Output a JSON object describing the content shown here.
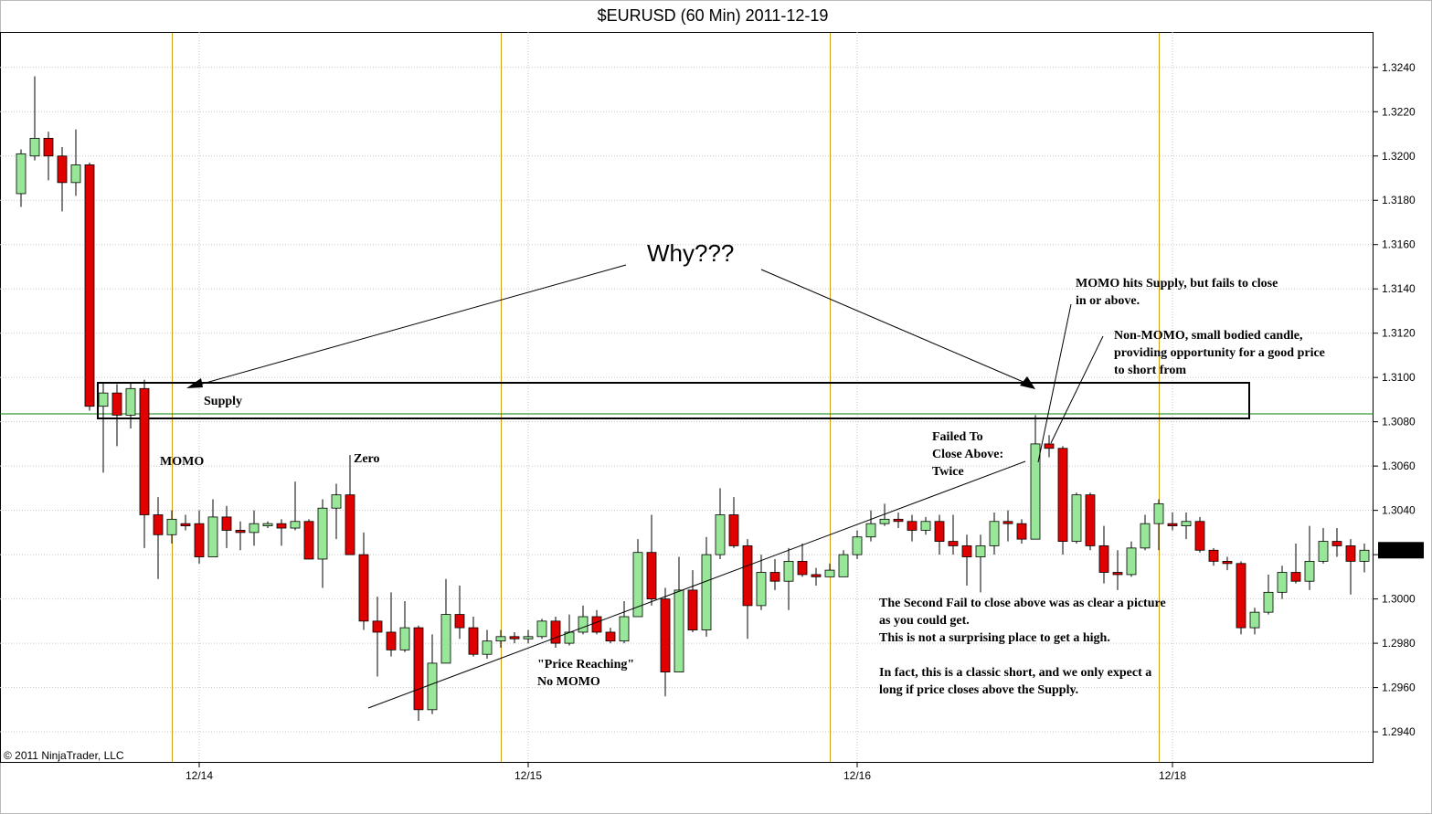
{
  "chart_data": {
    "type": "candlestick",
    "title": "$EURUSD (60 Min)  2011-12-19",
    "copyright": "© 2011 NinjaTrader, LLC",
    "categories": [
      null,
      null,
      null,
      null,
      null,
      null,
      null,
      null,
      null,
      null,
      null,
      null,
      null,
      "12/14",
      null,
      null,
      null,
      null,
      null,
      null,
      null,
      null,
      null,
      null,
      null,
      null,
      null,
      null,
      null,
      null,
      null,
      null,
      null,
      null,
      null,
      null,
      null,
      "12/15",
      null,
      null,
      null,
      null,
      null,
      null,
      null,
      null,
      null,
      null,
      null,
      null,
      null,
      null,
      null,
      null,
      null,
      null,
      null,
      null,
      null,
      null,
      null,
      "12/16",
      null,
      null,
      null,
      null,
      null,
      null,
      null,
      null,
      null,
      null,
      null,
      null,
      null,
      null,
      null,
      null,
      null,
      null,
      null,
      null,
      null,
      null,
      "12/18",
      null,
      null,
      null,
      null,
      null,
      null,
      null,
      null,
      null,
      null,
      null,
      null,
      null,
      null
    ],
    "open": [
      1.3183,
      1.32,
      1.3208,
      1.32,
      1.3188,
      1.3196,
      1.3087,
      1.3093,
      1.3083,
      1.3095,
      1.3038,
      1.3029,
      1.3034,
      1.3034,
      1.3019,
      1.3037,
      1.3031,
      1.303,
      1.3033,
      1.3034,
      1.3032,
      1.3035,
      1.3018,
      1.3041,
      1.3047,
      1.302,
      1.299,
      1.2985,
      1.2977,
      1.2987,
      1.295,
      1.2971,
      1.2993,
      1.2987,
      1.2975,
      1.2981,
      1.2983,
      1.2982,
      1.2983,
      1.299,
      1.298,
      1.2985,
      1.2992,
      1.2985,
      1.2981,
      1.2992,
      1.3021,
      1.3,
      1.2967,
      1.3004,
      1.2986,
      1.302,
      1.3038,
      1.3024,
      1.2997,
      1.3012,
      1.3008,
      1.3017,
      1.3011,
      1.301,
      1.301,
      1.302,
      1.3028,
      1.3034,
      1.3036,
      1.3035,
      1.3031,
      1.3035,
      1.3026,
      1.3024,
      1.3019,
      1.3024,
      1.3035,
      1.3034,
      1.3027,
      1.307,
      1.3068,
      1.3026,
      1.3047,
      1.3024,
      1.3012,
      1.3011,
      1.3023,
      1.3034,
      1.3034,
      1.3033,
      1.3035,
      1.3022,
      1.3017,
      1.3016,
      1.2987,
      1.2994,
      1.3003,
      1.3012,
      1.3008,
      1.3017,
      1.3026,
      1.3024,
      1.3017
    ],
    "high": [
      1.3203,
      1.3236,
      1.3211,
      1.3204,
      1.3212,
      1.3197,
      1.3098,
      1.3097,
      1.3098,
      1.3099,
      1.3046,
      1.304,
      1.3038,
      1.304,
      1.3045,
      1.3042,
      1.3035,
      1.304,
      1.3035,
      1.3036,
      1.3053,
      1.3036,
      1.3045,
      1.3052,
      1.3065,
      1.303,
      1.3001,
      1.3003,
      1.2999,
      1.2988,
      1.2984,
      1.3009,
      1.3006,
      1.2992,
      1.2986,
      1.2986,
      1.2985,
      1.2986,
      1.2991,
      1.2992,
      1.2993,
      1.2997,
      1.2995,
      1.2987,
      1.2999,
      1.3027,
      1.3038,
      1.3005,
      1.3019,
      1.3013,
      1.3028,
      1.305,
      1.3046,
      1.3027,
      1.302,
      1.3018,
      1.3023,
      1.3025,
      1.3014,
      1.3016,
      1.3022,
      1.3031,
      1.304,
      1.3043,
      1.3039,
      1.3038,
      1.3037,
      1.3038,
      1.3038,
      1.3029,
      1.3029,
      1.3039,
      1.304,
      1.3036,
      1.3083,
      1.3074,
      1.3069,
      1.3048,
      1.3048,
      1.3033,
      1.3022,
      1.3026,
      1.3038,
      1.3045,
      1.3039,
      1.3039,
      1.3037,
      1.3023,
      1.3019,
      1.3017,
      1.2996,
      1.3011,
      1.3015,
      1.3025,
      1.3033,
      1.3032,
      1.3032,
      1.3027,
      1.3025
    ],
    "low": [
      1.3177,
      1.3198,
      1.3189,
      1.3175,
      1.3182,
      1.3085,
      1.3057,
      1.3069,
      1.3077,
      1.3023,
      1.3009,
      1.3025,
      1.3031,
      1.3016,
      1.3019,
      1.3023,
      1.3022,
      1.3024,
      1.3032,
      1.3024,
      1.3031,
      1.3018,
      1.3005,
      1.3027,
      1.302,
      1.2986,
      1.2965,
      1.2974,
      1.2976,
      1.2945,
      1.2948,
      1.2971,
      1.2982,
      1.2974,
      1.2973,
      1.2978,
      1.298,
      1.298,
      1.2982,
      1.2978,
      1.2979,
      1.2984,
      1.2984,
      1.298,
      1.298,
      1.2992,
      1.2997,
      1.2956,
      1.2967,
      1.2985,
      1.2983,
      1.3018,
      1.3023,
      1.2982,
      1.2995,
      1.3004,
      1.2995,
      1.301,
      1.3006,
      1.301,
      1.301,
      1.3018,
      1.3026,
      1.3033,
      1.3032,
      1.3026,
      1.3029,
      1.302,
      1.302,
      1.3006,
      1.3003,
      1.302,
      1.3026,
      1.3025,
      1.3027,
      1.3064,
      1.302,
      1.3025,
      1.3022,
      1.3007,
      1.3004,
      1.301,
      1.3022,
      1.3022,
      1.3031,
      1.3027,
      1.3021,
      1.3015,
      1.3013,
      1.2984,
      1.2984,
      1.2993,
      1.3,
      1.3007,
      1.3004,
      1.3016,
      1.3019,
      1.3002,
      1.3012
    ],
    "close": [
      1.3201,
      1.3208,
      1.32,
      1.3188,
      1.3196,
      1.3087,
      1.3093,
      1.3083,
      1.3095,
      1.3038,
      1.3029,
      1.3036,
      1.3033,
      1.3019,
      1.3037,
      1.3031,
      1.303,
      1.3034,
      1.3034,
      1.3032,
      1.3035,
      1.3018,
      1.3041,
      1.3047,
      1.302,
      1.299,
      1.2985,
      1.2977,
      1.2987,
      1.295,
      1.2971,
      1.2993,
      1.2987,
      1.2975,
      1.2981,
      1.2983,
      1.2982,
      1.2983,
      1.299,
      1.298,
      1.2985,
      1.2992,
      1.2985,
      1.2981,
      1.2992,
      1.3021,
      1.3,
      1.2967,
      1.3004,
      1.2986,
      1.302,
      1.3038,
      1.3024,
      1.2997,
      1.3012,
      1.3008,
      1.3017,
      1.3011,
      1.301,
      1.3013,
      1.302,
      1.3028,
      1.3034,
      1.3036,
      1.3035,
      1.3031,
      1.3035,
      1.3026,
      1.3024,
      1.3019,
      1.3024,
      1.3035,
      1.3034,
      1.3027,
      1.307,
      1.3068,
      1.3026,
      1.3047,
      1.3024,
      1.3012,
      1.3011,
      1.3023,
      1.3034,
      1.3043,
      1.3033,
      1.3035,
      1.3022,
      1.3017,
      1.3016,
      1.2987,
      1.2994,
      1.3003,
      1.3012,
      1.3008,
      1.3017,
      1.3026,
      1.3024,
      1.3017,
      1.3022
    ],
    "up_color": "#98e698",
    "down_color": "#e00000",
    "last_price": 1.3022,
    "ylim": [
      1.2926,
      1.3256
    ],
    "yticks": [
      {
        "value": 1.294,
        "label": "1.2940"
      },
      {
        "value": 1.296,
        "label": "1.2960"
      },
      {
        "value": 1.298,
        "label": "1.2980"
      },
      {
        "value": 1.3,
        "label": "1.3000"
      },
      {
        "value": 1.302,
        "label": "1.3020"
      },
      {
        "value": 1.304,
        "label": "1.3040"
      },
      {
        "value": 1.306,
        "label": "1.3060"
      },
      {
        "value": 1.308,
        "label": "1.3080"
      },
      {
        "value": 1.31,
        "label": "1.3100"
      },
      {
        "value": 1.312,
        "label": "1.3120"
      },
      {
        "value": 1.314,
        "label": "1.3140"
      },
      {
        "value": 1.316,
        "label": "1.3160"
      },
      {
        "value": 1.318,
        "label": "1.3180"
      },
      {
        "value": 1.32,
        "label": "1.3200"
      },
      {
        "value": 1.322,
        "label": "1.3220"
      },
      {
        "value": 1.324,
        "label": "1.3240"
      }
    ],
    "grid": true,
    "annotations": {
      "why": "Why???",
      "supply": "Supply",
      "momo": "MOMO",
      "zero": "Zero",
      "price_reaching": [
        "\"Price Reaching\"",
        "No MOMO"
      ],
      "failed": [
        "Failed To",
        "Close Above:",
        "Twice"
      ],
      "momo_hits": [
        "MOMO hits Supply, but fails to close",
        "in or above."
      ],
      "non_momo": [
        "Non-MOMO, small bodied candle,",
        "providing opportunity for a good price",
        "to short from"
      ],
      "second_fail": [
        "The Second Fail to close above was as clear a picture",
        "as you could get.",
        "This is not a surprising place to get a high."
      ],
      "classic_short": [
        "In fact, this is a classic short, and we only expect a",
        "long if price closes above the Supply."
      ]
    }
  }
}
